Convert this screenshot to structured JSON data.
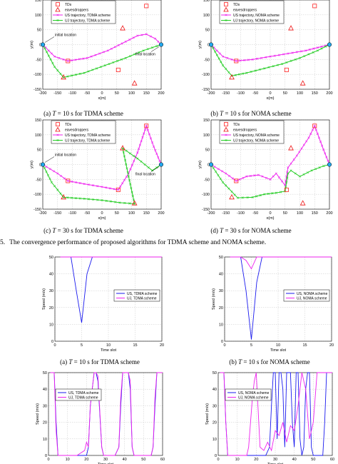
{
  "figure1": {
    "caption": "The convergence performance of proposed algorithms for TDMA scheme and NOMA scheme.",
    "caption_prefix": "5.",
    "panels": [
      {
        "caption": "(a) T = 10 s for TDMA scheme",
        "caption_parts": [
          "(a) ",
          "T",
          " = 10 s for TDMA scheme"
        ],
        "legend": [
          "TDs",
          "eavesdroppers",
          "US trajectory, TDMA scheme",
          "UJ trajectory, TDMA scheme"
        ],
        "annotations": [
          "initial location",
          "final location"
        ],
        "xlabel": "x(m)",
        "ylabel": "y(m)"
      },
      {
        "caption": "(b) T = 10 s for NOMA scheme",
        "caption_parts": [
          "(b) ",
          "T",
          " = 10 s for NOMA scheme"
        ],
        "legend": [
          "TDs",
          "eavesdroppers",
          "US trajectory, NOMA scheme",
          "UJ trajectory, NOMA scheme"
        ],
        "annotations": [],
        "xlabel": "x(m)",
        "ylabel": "y(m)"
      },
      {
        "caption": "(c) T = 30 s for TDMA scheme",
        "caption_parts": [
          "(c) ",
          "T",
          " = 30 s for TDMA scheme"
        ],
        "legend": [
          "TDs",
          "eavesdroppers",
          "US trajectory, TDMA scheme",
          "UJ trajectory, TDMA scheme"
        ],
        "annotations": [
          "initial location",
          "final location"
        ],
        "xlabel": "x(m)",
        "ylabel": "y(m)"
      },
      {
        "caption": "(d) T = 30 s for NOMA scheme",
        "caption_parts": [
          "(d) ",
          "T",
          " = 30 s for NOMA scheme"
        ],
        "legend": [
          "TDs",
          "eavesdroppers",
          "US trajectory, NOMA scheme",
          "UJ trajectory, NOMA scheme"
        ],
        "annotations": [],
        "xlabel": "x(m)",
        "ylabel": "y(m)"
      }
    ]
  },
  "figure2": {
    "panels": [
      {
        "caption": "(a) T = 10 s for TDMA scheme",
        "caption_parts": [
          "(a) ",
          "T",
          " = 10 s for TDMA scheme"
        ],
        "legend": [
          "US, TDMA scheme",
          "UJ, TDMA scheme"
        ],
        "xlabel": "Time slot",
        "ylabel": "Speed (m/s)"
      },
      {
        "caption": "(b) T = 10 s for NOMA scheme",
        "caption_parts": [
          "(b) ",
          "T",
          " = 10 s for NOMA scheme"
        ],
        "legend": [
          "US, NOMA scheme",
          "UJ, NOMA scheme"
        ],
        "xlabel": "Time slot",
        "ylabel": "Speed (m/s)"
      },
      {
        "caption": "",
        "legend": [
          "US, TDMA scheme",
          "UJ, TDMA scheme"
        ],
        "xlabel": "Time slot",
        "ylabel": "Speed (m/s)"
      },
      {
        "caption": "",
        "legend": [
          "US, NOMA scheme",
          "UJ, NOMA scheme"
        ],
        "xlabel": "Time slot",
        "ylabel": "Speed (m/s)"
      }
    ]
  },
  "colors": {
    "us": "#ee22ee",
    "uj": "#22cc22",
    "us_speed": "#1a1aee",
    "uj_speed": "#ee22ee",
    "td": "#ff2222",
    "eve": "#ee1111",
    "endpoint": "#22a8ee",
    "grid": "#c8c8c8"
  },
  "chart_data": [
    {
      "type": "line",
      "xlim": [
        -200,
        200
      ],
      "ylim": [
        -150,
        150
      ],
      "xticks": [
        -200,
        -150,
        -100,
        -50,
        0,
        50,
        100,
        150,
        200
      ],
      "yticks": [
        -150,
        -100,
        -50,
        0,
        50,
        100,
        150
      ],
      "grid": true,
      "legend_position": "top-center",
      "tds": [
        [
          -115,
          -55
        ],
        [
          55,
          -85
        ],
        [
          150,
          130
        ]
      ],
      "eavesdroppers": [
        [
          -130,
          -110
        ],
        [
          70,
          55
        ],
        [
          110,
          -130
        ]
      ],
      "series": [
        {
          "name": "US trajectory, TDMA scheme",
          "x": [
            -200,
            -160,
            -115,
            -50,
            20,
            80,
            120,
            150,
            180,
            200
          ],
          "y": [
            0,
            -40,
            -55,
            -45,
            -20,
            10,
            30,
            35,
            20,
            0
          ]
        },
        {
          "name": "UJ trajectory, TDMA scheme",
          "x": [
            -200,
            -160,
            -130,
            -60,
            10,
            80,
            140,
            200
          ],
          "y": [
            0,
            -75,
            -110,
            -95,
            -70,
            -45,
            -20,
            0
          ]
        }
      ]
    },
    {
      "type": "line",
      "xlim": [
        -200,
        200
      ],
      "ylim": [
        -150,
        150
      ],
      "xticks": [
        -200,
        -150,
        -100,
        -50,
        0,
        50,
        100,
        150,
        200
      ],
      "yticks": [
        -150,
        -100,
        -50,
        0,
        50,
        100,
        150
      ],
      "grid": true,
      "legend_position": "top-center",
      "tds": [
        [
          -115,
          -55
        ],
        [
          55,
          -85
        ],
        [
          150,
          130
        ]
      ],
      "eavesdroppers": [
        [
          -130,
          -110
        ],
        [
          70,
          55
        ],
        [
          110,
          -130
        ]
      ],
      "series": [
        {
          "name": "US trajectory, NOMA scheme",
          "x": [
            -200,
            -160,
            -115,
            -60,
            0,
            60,
            120,
            200
          ],
          "y": [
            0,
            -40,
            -55,
            -50,
            -40,
            -30,
            -20,
            0
          ]
        },
        {
          "name": "UJ trajectory, NOMA scheme",
          "x": [
            -200,
            -160,
            -130,
            -80,
            -20,
            40,
            100,
            160,
            200
          ],
          "y": [
            0,
            -70,
            -105,
            -95,
            -80,
            -65,
            -45,
            -20,
            0
          ]
        }
      ]
    },
    {
      "type": "line",
      "xlim": [
        -200,
        200
      ],
      "ylim": [
        -150,
        150
      ],
      "xticks": [
        -200,
        -150,
        -100,
        -50,
        0,
        50,
        100,
        150,
        200
      ],
      "yticks": [
        -150,
        -100,
        -50,
        0,
        50,
        100,
        150
      ],
      "grid": true,
      "legend_position": "top-center",
      "tds": [
        [
          -115,
          -55
        ],
        [
          55,
          -85
        ],
        [
          150,
          130
        ]
      ],
      "eavesdroppers": [
        [
          -130,
          -110
        ],
        [
          70,
          55
        ],
        [
          110,
          -130
        ]
      ],
      "series": [
        {
          "name": "US trajectory, TDMA scheme",
          "x": [
            -200,
            -150,
            -115,
            -60,
            0,
            55,
            90,
            120,
            150,
            175,
            200
          ],
          "y": [
            0,
            -30,
            -55,
            -65,
            -75,
            -85,
            -30,
            40,
            130,
            60,
            0
          ]
        },
        {
          "name": "UJ trajectory, TDMA scheme",
          "x": [
            -200,
            -170,
            -130,
            -60,
            0,
            60,
            110,
            90,
            70,
            120,
            170,
            200
          ],
          "y": [
            0,
            -60,
            -110,
            -115,
            -120,
            -128,
            -132,
            -40,
            55,
            20,
            -20,
            0
          ]
        }
      ]
    },
    {
      "type": "line",
      "xlim": [
        -200,
        200
      ],
      "ylim": [
        -150,
        150
      ],
      "xticks": [
        -200,
        -150,
        -100,
        -50,
        0,
        50,
        100,
        150,
        200
      ],
      "yticks": [
        -150,
        -100,
        -50,
        0,
        50,
        100,
        150
      ],
      "grid": true,
      "legend_position": "top-center",
      "tds": [
        [
          -115,
          -55
        ],
        [
          55,
          -85
        ],
        [
          150,
          130
        ]
      ],
      "eavesdroppers": [
        [
          -130,
          -110
        ],
        [
          70,
          55
        ],
        [
          110,
          -130
        ]
      ],
      "series": [
        {
          "name": "US trajectory, NOMA scheme",
          "x": [
            -200,
            -150,
            -115,
            -80,
            -40,
            0,
            20,
            50,
            60,
            90,
            130,
            150,
            180,
            200
          ],
          "y": [
            0,
            -30,
            -55,
            -40,
            -35,
            -50,
            -30,
            -70,
            -10,
            30,
            90,
            130,
            50,
            0
          ]
        },
        {
          "name": "UJ trajectory, NOMA scheme",
          "x": [
            -200,
            -160,
            -110,
            -60,
            -20,
            20,
            50,
            60,
            70,
            100,
            140,
            180,
            200
          ],
          "y": [
            0,
            -60,
            -112,
            -110,
            -100,
            -95,
            -90,
            -30,
            -20,
            -40,
            -20,
            -5,
            0
          ]
        }
      ]
    },
    {
      "type": "line",
      "xlim": [
        0,
        20
      ],
      "ylim": [
        0,
        50
      ],
      "xticks": [
        0,
        5,
        10,
        15,
        20
      ],
      "yticks": [
        0,
        10,
        20,
        30,
        40,
        50
      ],
      "grid": true,
      "legend_position": "top-right",
      "series": [
        {
          "name": "US, TDMA scheme",
          "x": [
            1,
            2,
            3,
            4,
            5,
            6,
            7,
            8,
            9,
            10,
            11,
            12,
            13,
            14,
            15,
            16,
            17,
            18,
            19,
            20
          ],
          "y": [
            50,
            50,
            50,
            30,
            11,
            40,
            50,
            50,
            50,
            50,
            50,
            50,
            50,
            50,
            50,
            50,
            50,
            50,
            50,
            50
          ]
        },
        {
          "name": "UJ, TDMA scheme",
          "x": [
            1,
            2,
            3,
            4,
            5,
            6,
            7,
            8,
            9,
            10,
            11,
            12,
            13,
            14,
            15,
            16,
            17,
            18,
            19,
            20
          ],
          "y": [
            50,
            50,
            50,
            50,
            50,
            50,
            50,
            50,
            50,
            50,
            50,
            50,
            50,
            50,
            50,
            50,
            50,
            50,
            50,
            50
          ]
        }
      ]
    },
    {
      "type": "line",
      "xlim": [
        0,
        20
      ],
      "ylim": [
        0,
        50
      ],
      "xticks": [
        0,
        5,
        10,
        15,
        20
      ],
      "yticks": [
        0,
        10,
        20,
        30,
        40,
        50
      ],
      "grid": true,
      "legend_position": "top-right",
      "series": [
        {
          "name": "US, NOMA scheme",
          "x": [
            1,
            2,
            3,
            4,
            5,
            6,
            7,
            8,
            9,
            10,
            11,
            12,
            13,
            14,
            15,
            16,
            17,
            18,
            19,
            20
          ],
          "y": [
            50,
            50,
            50,
            30,
            1,
            35,
            50,
            50,
            50,
            50,
            50,
            50,
            50,
            50,
            50,
            50,
            50,
            50,
            50,
            50
          ]
        },
        {
          "name": "UJ, NOMA scheme",
          "x": [
            1,
            2,
            3,
            4,
            5,
            6,
            7,
            8,
            9,
            10,
            11,
            12,
            13,
            14,
            15,
            16,
            17,
            18,
            19,
            20
          ],
          "y": [
            50,
            50,
            50,
            48,
            43,
            50,
            50,
            50,
            50,
            50,
            50,
            50,
            50,
            50,
            50,
            50,
            50,
            50,
            50,
            50
          ]
        }
      ]
    },
    {
      "type": "line",
      "xlim": [
        0,
        60
      ],
      "ylim": [
        0,
        50
      ],
      "xticks": [
        0,
        10,
        20,
        30,
        40,
        50,
        60
      ],
      "yticks": [
        0,
        10,
        20,
        30,
        40,
        50
      ],
      "grid": true,
      "legend_position": "top-left",
      "series": [
        {
          "name": "US, TDMA scheme",
          "x": [
            1,
            2,
            3,
            4,
            5,
            10,
            15,
            20,
            21,
            22,
            24,
            25,
            26,
            28,
            29,
            30,
            35,
            37,
            38,
            39,
            40,
            42,
            43,
            44,
            45,
            50,
            54,
            55,
            56,
            57,
            58,
            59,
            60
          ],
          "y": [
            50,
            50,
            50,
            20,
            0,
            0,
            0,
            0,
            5,
            30,
            50,
            50,
            45,
            5,
            0,
            0,
            0,
            5,
            30,
            50,
            50,
            50,
            40,
            5,
            0,
            0,
            0,
            5,
            30,
            50,
            50,
            50,
            50
          ]
        },
        {
          "name": "UJ, TDMA scheme",
          "x": [
            1,
            2,
            3,
            4,
            5,
            10,
            15,
            19,
            20,
            21,
            22,
            24,
            25,
            26,
            28,
            29,
            30,
            35,
            37,
            38,
            39,
            40,
            42,
            43,
            44,
            45,
            50,
            54,
            55,
            56,
            57,
            58,
            59,
            60
          ],
          "y": [
            50,
            50,
            50,
            15,
            0,
            0,
            0,
            3,
            8,
            5,
            30,
            50,
            50,
            48,
            5,
            0,
            0,
            0,
            5,
            35,
            50,
            50,
            50,
            45,
            5,
            0,
            0,
            0,
            5,
            35,
            50,
            50,
            50,
            50
          ]
        }
      ]
    },
    {
      "type": "line",
      "xlim": [
        0,
        60
      ],
      "ylim": [
        0,
        50
      ],
      "xticks": [
        0,
        10,
        20,
        30,
        40,
        50,
        60
      ],
      "yticks": [
        0,
        10,
        20,
        30,
        40,
        50
      ],
      "grid": true,
      "legend_position": "top-left",
      "series": [
        {
          "name": "US, NOMA scheme",
          "x": [
            1,
            2,
            3,
            4,
            5,
            10,
            20,
            25,
            27,
            28,
            29,
            30,
            31,
            32,
            33,
            34,
            35,
            36,
            37,
            38,
            39,
            40,
            41,
            42,
            43,
            44,
            45,
            46,
            47,
            48,
            49,
            50,
            55,
            56,
            57,
            58,
            59,
            60
          ],
          "y": [
            50,
            50,
            50,
            20,
            0,
            0,
            0,
            0,
            5,
            30,
            50,
            50,
            10,
            50,
            50,
            40,
            5,
            50,
            50,
            50,
            20,
            5,
            50,
            50,
            10,
            0,
            5,
            40,
            50,
            50,
            5,
            0,
            0,
            20,
            50,
            50,
            50,
            50
          ]
        },
        {
          "name": "UJ, NOMA scheme",
          "x": [
            1,
            2,
            3,
            4,
            5,
            10,
            15,
            16,
            17,
            18,
            19,
            20,
            22,
            24,
            26,
            28,
            30,
            32,
            34,
            36,
            38,
            40,
            42,
            44,
            46,
            48,
            50,
            52,
            54,
            55,
            56,
            57,
            58,
            59,
            60
          ],
          "y": [
            50,
            50,
            50,
            20,
            0,
            0,
            0,
            5,
            20,
            35,
            45,
            50,
            5,
            3,
            8,
            3,
            15,
            12,
            20,
            8,
            18,
            15,
            30,
            50,
            40,
            10,
            20,
            50,
            50,
            50,
            50,
            50,
            50,
            50,
            50
          ]
        }
      ]
    }
  ]
}
